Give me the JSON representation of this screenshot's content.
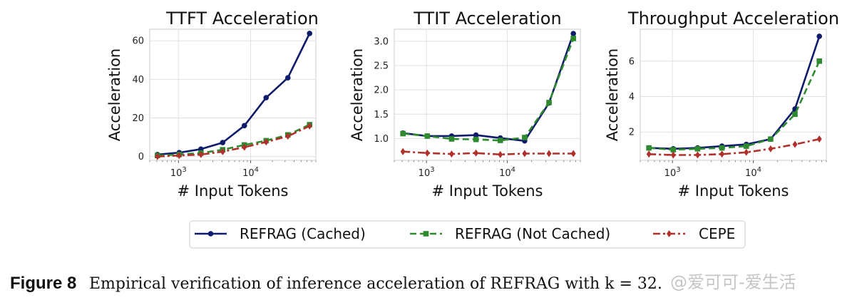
{
  "chart_data": [
    {
      "type": "line",
      "title": "TTFT Acceleration",
      "xlabel": "# Input Tokens",
      "ylabel": "Acceleration",
      "xscale": "log",
      "x": [
        512,
        1024,
        2048,
        4096,
        8192,
        16384,
        32768,
        65536
      ],
      "xticks": [
        "10^3",
        "10^4"
      ],
      "ylim": [
        -2,
        66
      ],
      "yticks": [
        0,
        20,
        40,
        60
      ],
      "grid": true,
      "series": [
        {
          "name": "REFRAG (Cached)",
          "values": [
            1.0,
            2.0,
            3.8,
            7.2,
            16.0,
            30.5,
            40.8,
            63.8
          ]
        },
        {
          "name": "REFRAG (Not Cached)",
          "values": [
            0.5,
            1.0,
            1.8,
            3.5,
            6.0,
            8.2,
            11.2,
            16.5
          ]
        },
        {
          "name": "CEPE",
          "values": [
            0.0,
            0.5,
            1.0,
            2.5,
            4.8,
            7.5,
            10.5,
            15.8
          ]
        }
      ]
    },
    {
      "type": "line",
      "title": "TTIT Acceleration",
      "xlabel": "# Input Tokens",
      "ylabel": "Acceleration",
      "xscale": "log",
      "x": [
        512,
        1024,
        2048,
        4096,
        8192,
        16384,
        32768,
        65536
      ],
      "xticks": [
        "10^3",
        "10^4"
      ],
      "ylim": [
        0.55,
        3.25
      ],
      "yticks": [
        "1.0",
        "1.5",
        "2.0",
        "2.5",
        "3.0"
      ],
      "grid": true,
      "series": [
        {
          "name": "REFRAG (Cached)",
          "values": [
            1.11,
            1.05,
            1.05,
            1.07,
            1.01,
            0.95,
            1.73,
            3.16
          ]
        },
        {
          "name": "REFRAG (Not Cached)",
          "values": [
            1.1,
            1.05,
            0.99,
            0.98,
            0.96,
            1.02,
            1.74,
            3.06
          ]
        },
        {
          "name": "CEPE",
          "values": [
            0.73,
            0.7,
            0.68,
            0.7,
            0.67,
            0.69,
            0.69,
            0.69
          ]
        }
      ]
    },
    {
      "type": "line",
      "title": "Throughput Acceleration",
      "xlabel": "# Input Tokens",
      "ylabel": "Acceleration",
      "xscale": "log",
      "x": [
        512,
        1024,
        2048,
        4096,
        8192,
        16384,
        32768,
        65536
      ],
      "xticks": [
        "10^3",
        "10^4"
      ],
      "ylim": [
        0.4,
        7.8
      ],
      "yticks": [
        2,
        4,
        6
      ],
      "grid": true,
      "series": [
        {
          "name": "REFRAG (Cached)",
          "values": [
            1.1,
            1.05,
            1.1,
            1.2,
            1.3,
            1.6,
            3.3,
            7.4
          ]
        },
        {
          "name": "REFRAG (Not Cached)",
          "values": [
            1.1,
            1.0,
            1.05,
            1.1,
            1.2,
            1.6,
            3.0,
            6.0
          ]
        },
        {
          "name": "CEPE",
          "values": [
            0.75,
            0.7,
            0.7,
            0.75,
            0.85,
            1.05,
            1.3,
            1.6
          ]
        }
      ]
    }
  ],
  "legend": {
    "position": "bottom-center",
    "entries": [
      "REFRAG (Cached)",
      "REFRAG (Not Cached)",
      "CEPE"
    ]
  },
  "series_style": [
    {
      "color": "#0f1b6b",
      "dash": "none",
      "marker": "circle"
    },
    {
      "color": "#2f8a2f",
      "dash": "dashed",
      "marker": "square"
    },
    {
      "color": "#b0312c",
      "dash": "dashdot",
      "marker": "diamond"
    }
  ],
  "caption": {
    "label": "Figure 8",
    "text": "Empirical verification of inference acceleration of REFRAG with k = 32."
  },
  "watermark": "@爱可可-爱生活"
}
